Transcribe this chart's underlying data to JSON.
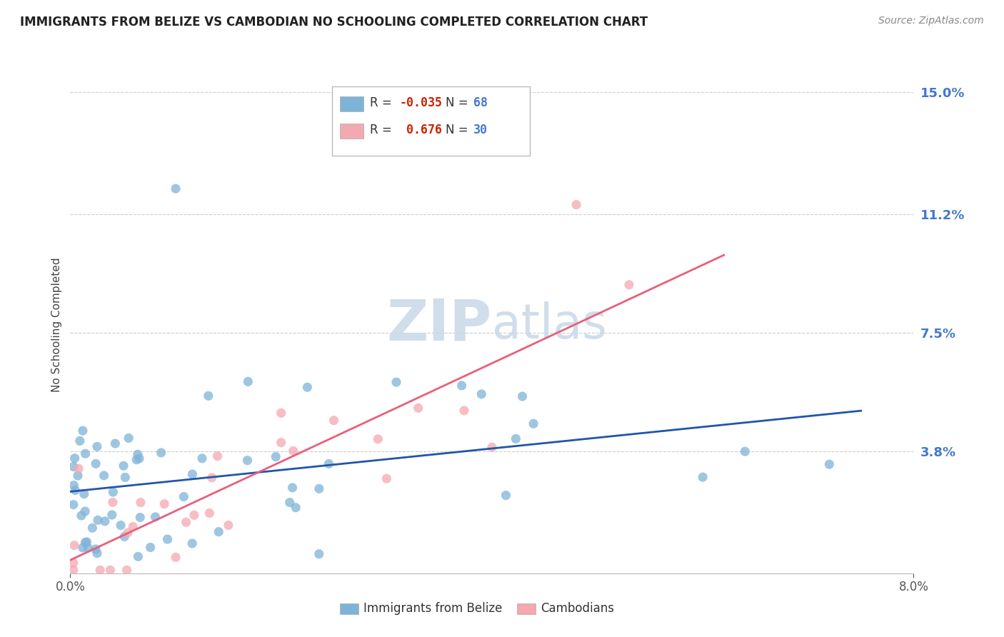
{
  "title": "IMMIGRANTS FROM BELIZE VS CAMBODIAN NO SCHOOLING COMPLETED CORRELATION CHART",
  "source_text": "Source: ZipAtlas.com",
  "ylabel": "No Schooling Completed",
  "xlabel_belize": "Immigrants from Belize",
  "xlabel_cambodian": "Cambodians",
  "legend_r_belize": "-0.035",
  "legend_n_belize": "68",
  "legend_r_cambodian": "0.676",
  "legend_n_cambodian": "30",
  "color_belize": "#7EB3D8",
  "color_cambodian": "#F4A8B0",
  "color_belize_line": "#2255AA",
  "color_cambodian_line": "#E8607A",
  "xmin": 0.0,
  "xmax": 0.08,
  "ymin": 0.0,
  "ymax": 0.155,
  "ytick_vals": [
    0.0,
    0.038,
    0.075,
    0.112,
    0.15
  ],
  "ytick_labels": [
    "",
    "3.8%",
    "7.5%",
    "11.2%",
    "15.0%"
  ],
  "xtick_vals": [
    0.0,
    0.08
  ],
  "xtick_labels": [
    "0.0%",
    "8.0%"
  ],
  "watermark_zip": "ZIP",
  "watermark_atlas": "atlas",
  "seed_belize": 42,
  "seed_cambodian": 99
}
